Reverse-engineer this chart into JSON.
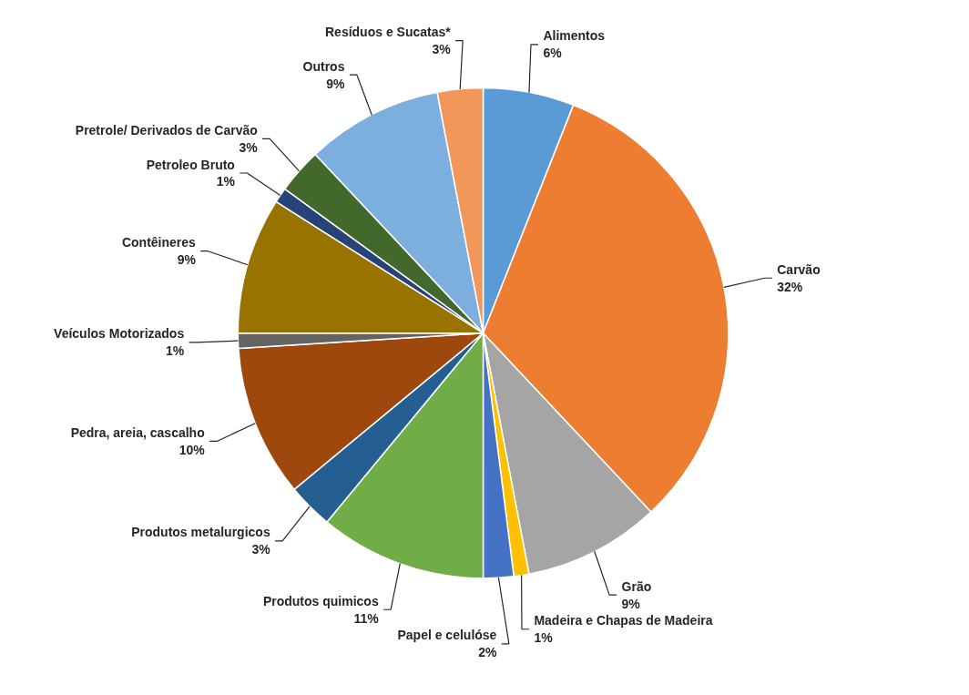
{
  "chart_data": {
    "type": "pie",
    "categories": [
      "Alimentos",
      "Carvão",
      "Grão",
      "Madeira e Chapas de Madeira",
      "Papel e celulóse",
      "Produtos quimicos",
      "Produtos metalurgicos",
      "Pedra, areia, cascalho",
      "Veículos Motorizados",
      "Contêineres",
      "Petroleo Bruto",
      "Pretrole/ Derivados de Carvão",
      "Outros",
      "Resíduos e Sucatas*"
    ],
    "values": [
      6,
      32,
      9,
      1,
      2,
      11,
      3,
      10,
      1,
      9,
      1,
      3,
      9,
      3
    ],
    "value_labels": [
      "6%",
      "32%",
      "9%",
      "1%",
      "2%",
      "11%",
      "3%",
      "10%",
      "1%",
      "9%",
      "1%",
      "3%",
      "9%",
      "3%"
    ],
    "colors": [
      "#5b9bd5",
      "#ed7d31",
      "#a5a5a5",
      "#ffc000",
      "#4472c4",
      "#70ad47",
      "#255e91",
      "#9e480e",
      "#636363",
      "#997300",
      "#264478",
      "#43682b",
      "#7cafdd",
      "#f1975a"
    ]
  }
}
